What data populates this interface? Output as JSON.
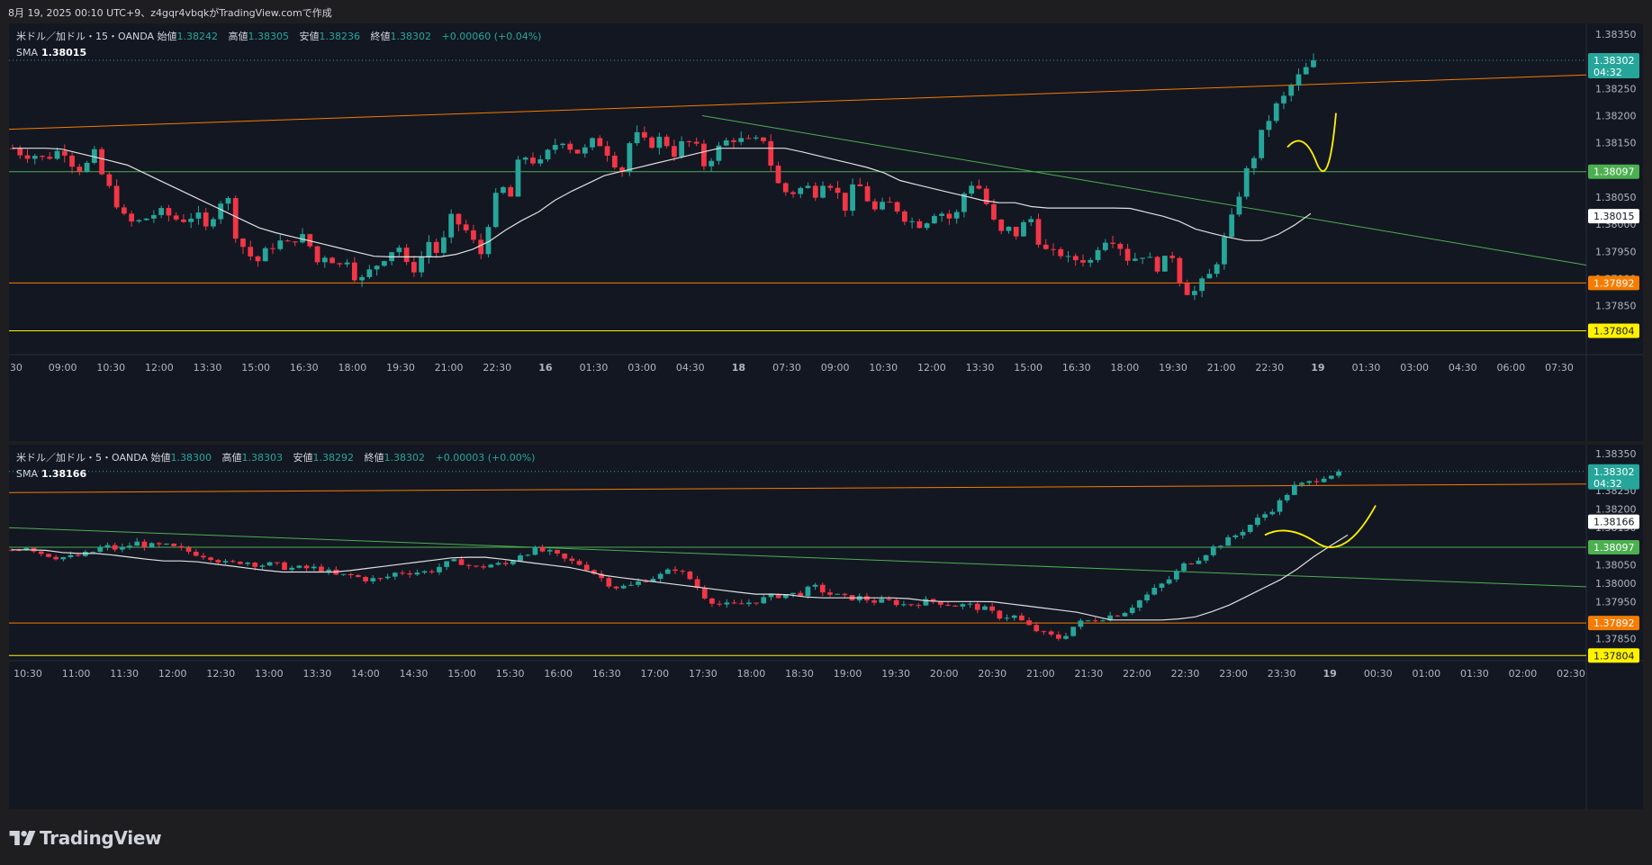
{
  "header": {
    "caption": "8月 19, 2025 00:10 UTC+9、z4gqr4vbqkがTradingView.comで作成"
  },
  "footer": {
    "brand": "TradingView"
  },
  "colors": {
    "up": "#26a69a",
    "down": "#f23645",
    "orange": "#f57c00",
    "green_line": "#4caf50",
    "yellow": "#fff200",
    "sma": "#e0e0e0",
    "background": "#131722"
  },
  "chart_data": [
    {
      "type": "candlestick",
      "legend": {
        "symbol": "米ドル／加ドル・15・OANDA",
        "open_label": "始値",
        "open": "1.38242",
        "high_label": "高値",
        "high": "1.38305",
        "low_label": "安値",
        "low": "1.38236",
        "close_label": "終値",
        "close": "1.38302",
        "change": "+0.00060 (+0.04%)",
        "sma_label": "SMA",
        "sma_value": "1.38015"
      },
      "ylim": [
        1.3777,
        1.3836
      ],
      "yticks": [
        "1.38350",
        "1.38300",
        "1.38250",
        "1.38200",
        "1.38150",
        "1.38100",
        "1.38050",
        "1.38000",
        "1.37950",
        "1.37900",
        "1.37850"
      ],
      "xticks": [
        ":30",
        "09:00",
        "10:30",
        "12:00",
        "13:30",
        "15:00",
        "16:30",
        "18:00",
        "19:30",
        "21:00",
        "22:30",
        "16",
        "01:30",
        "03:00",
        "04:30",
        "18",
        "07:30",
        "09:00",
        "10:30",
        "12:00",
        "13:30",
        "15:00",
        "16:30",
        "18:00",
        "19:30",
        "21:00",
        "22:30",
        "19",
        "01:30",
        "03:00",
        "04:30",
        "06:00",
        "07:30"
      ],
      "price_labels": [
        {
          "value": "1.38302",
          "sub": "04:32",
          "color": "#26a69a"
        },
        {
          "value": "1.38097",
          "color": "#4caf50"
        },
        {
          "value": "1.38015",
          "color": "#ffffff"
        },
        {
          "value": "1.37892",
          "color": "#f57c00"
        },
        {
          "value": "1.37804",
          "color": "#fff200"
        }
      ],
      "hlines": [
        {
          "y": 1.38097,
          "color": "#4caf50"
        },
        {
          "y": 1.37892,
          "color": "#f57c00"
        },
        {
          "y": 1.37804,
          "color": "#fff200"
        }
      ],
      "last_price": 1.38302,
      "close_path": [
        1.3814,
        1.3813,
        1.3813,
        1.3812,
        1.3813,
        1.3814,
        1.3811,
        1.381,
        1.3813,
        1.3808,
        1.3805,
        1.3801,
        1.38,
        1.3801,
        1.3802,
        1.3802,
        1.3801,
        1.3801,
        1.3802,
        1.3799,
        1.3803,
        1.3806,
        1.3798,
        1.3795,
        1.3793,
        1.3795,
        1.3797,
        1.3796,
        1.3798,
        1.3797,
        1.3793,
        1.3795,
        1.3792,
        1.3794,
        1.3789,
        1.3791,
        1.3793,
        1.3795,
        1.3796,
        1.3791,
        1.3793,
        1.3797,
        1.3794,
        1.3801,
        1.38,
        1.3798,
        1.3794,
        1.3802,
        1.3807,
        1.3805,
        1.3813,
        1.3812,
        1.3811,
        1.3814,
        1.3816,
        1.3814,
        1.3813,
        1.3815,
        1.3815,
        1.3812,
        1.381,
        1.3817,
        1.3815,
        1.3815,
        1.3816,
        1.3813,
        1.3815,
        1.3815,
        1.3811,
        1.3813,
        1.3815,
        1.3816,
        1.3815,
        1.3815,
        1.3816,
        1.3808,
        1.3806,
        1.3806,
        1.3807,
        1.3806,
        1.3809,
        1.3806,
        1.3803,
        1.3808,
        1.3805,
        1.3802,
        1.3804,
        1.3803,
        1.3801,
        1.38,
        1.3801,
        1.3803,
        1.3801,
        1.3802,
        1.3808,
        1.3807,
        1.3803,
        1.3798,
        1.3799,
        1.3798,
        1.3802,
        1.3797,
        1.3794,
        1.3795,
        1.3793,
        1.3794,
        1.3793,
        1.3797,
        1.3798,
        1.3796,
        1.3793,
        1.3795,
        1.3793,
        1.3792,
        1.3795,
        1.3789,
        1.3787,
        1.3789,
        1.3791,
        1.3796,
        1.3801,
        1.3808,
        1.3812,
        1.3817,
        1.3821,
        1.3823,
        1.3826,
        1.3828,
        1.383
      ],
      "sma_path": [
        1.3814,
        1.3814,
        1.3814,
        1.3813,
        1.3812,
        1.3811,
        1.3809,
        1.3807,
        1.3805,
        1.3803,
        1.3801,
        1.3799,
        1.3798,
        1.3797,
        1.3796,
        1.3795,
        1.3794,
        1.3794,
        1.3794,
        1.3794,
        1.3795,
        1.3797,
        1.38,
        1.3802,
        1.3805,
        1.3807,
        1.3809,
        1.381,
        1.3811,
        1.3812,
        1.3813,
        1.3814,
        1.3814,
        1.3814,
        1.3814,
        1.3813,
        1.3812,
        1.3811,
        1.381,
        1.3808,
        1.3807,
        1.3806,
        1.3805,
        1.3804,
        1.3804,
        1.3803,
        1.3803,
        1.3803,
        1.3803,
        1.3803,
        1.3802,
        1.3801,
        1.3799,
        1.3798,
        1.3797,
        1.3797,
        1.3799,
        1.3802
      ]
    },
    {
      "type": "candlestick",
      "legend": {
        "symbol": "米ドル／加ドル・5・OANDA",
        "open_label": "始値",
        "open": "1.38300",
        "high_label": "高値",
        "high": "1.38303",
        "low_label": "安値",
        "low": "1.38292",
        "close_label": "終値",
        "close": "1.38302",
        "change": "+0.00003 (+0.00%)",
        "sma_label": "SMA",
        "sma_value": "1.38166"
      },
      "ylim": [
        1.3779,
        1.3836
      ],
      "yticks": [
        "1.38350",
        "1.38300",
        "1.38250",
        "1.38200",
        "1.38150",
        "1.38100",
        "1.38050",
        "1.38000",
        "1.37950",
        "1.37900",
        "1.37850"
      ],
      "xticks": [
        "10:30",
        "11:00",
        "11:30",
        "12:00",
        "12:30",
        "13:00",
        "13:30",
        "14:00",
        "14:30",
        "15:00",
        "15:30",
        "16:00",
        "16:30",
        "17:00",
        "17:30",
        "18:00",
        "18:30",
        "19:00",
        "19:30",
        "20:00",
        "20:30",
        "21:00",
        "21:30",
        "22:00",
        "22:30",
        "23:00",
        "23:30",
        "19",
        "00:30",
        "01:00",
        "01:30",
        "02:00",
        "02:30"
      ],
      "price_labels": [
        {
          "value": "1.38302",
          "sub": "04:32",
          "color": "#26a69a"
        },
        {
          "value": "1.38166",
          "color": "#ffffff"
        },
        {
          "value": "1.38097",
          "color": "#4caf50"
        },
        {
          "value": "1.37892",
          "color": "#f57c00"
        },
        {
          "value": "1.37804",
          "color": "#fff200"
        }
      ],
      "hlines": [
        {
          "y": 1.38097,
          "color": "#4caf50"
        },
        {
          "y": 1.37892,
          "color": "#f57c00"
        },
        {
          "y": 1.37804,
          "color": "#fff200"
        }
      ],
      "last_price": 1.38302,
      "close_path": [
        1.3809,
        1.381,
        1.3808,
        1.3807,
        1.3807,
        1.3808,
        1.381,
        1.3809,
        1.3811,
        1.381,
        1.381,
        1.3809,
        1.3808,
        1.3807,
        1.3805,
        1.3806,
        1.3805,
        1.3805,
        1.3804,
        1.3804,
        1.3804,
        1.3802,
        1.3802,
        1.3801,
        1.3801,
        1.3803,
        1.3803,
        1.3803,
        1.3805,
        1.3806,
        1.3804,
        1.3805,
        1.3805,
        1.3808,
        1.3809,
        1.3808,
        1.3806,
        1.3805,
        1.3802,
        1.3799,
        1.3799,
        1.3801,
        1.3802,
        1.3804,
        1.3801,
        1.3796,
        1.3794,
        1.3794,
        1.3795,
        1.3796,
        1.3797,
        1.3797,
        1.3799,
        1.3797,
        1.3796,
        1.3796,
        1.3795,
        1.3795,
        1.3794,
        1.3795,
        1.3795,
        1.3794,
        1.3794,
        1.3793,
        1.3791,
        1.3791,
        1.3788,
        1.3786,
        1.3785,
        1.3789,
        1.379,
        1.3791,
        1.3792,
        1.3795,
        1.3798,
        1.3801,
        1.3805,
        1.3807,
        1.381,
        1.3812,
        1.3815,
        1.3818,
        1.3821,
        1.3826,
        1.3827,
        1.3829,
        1.383
      ],
      "sma_path": [
        1.3809,
        1.3809,
        1.3808,
        1.3808,
        1.3807,
        1.3806,
        1.3806,
        1.3805,
        1.3804,
        1.3803,
        1.3803,
        1.3803,
        1.3804,
        1.3805,
        1.3806,
        1.3807,
        1.3807,
        1.3806,
        1.3805,
        1.3804,
        1.3802,
        1.3801,
        1.38,
        1.3799,
        1.3798,
        1.3797,
        1.3797,
        1.3796,
        1.3796,
        1.3796,
        1.3796,
        1.3795,
        1.3795,
        1.3795,
        1.3794,
        1.3793,
        1.3792,
        1.379,
        1.379,
        1.379,
        1.3791,
        1.3794,
        1.3798,
        1.3802,
        1.3808,
        1.3813
      ]
    }
  ]
}
